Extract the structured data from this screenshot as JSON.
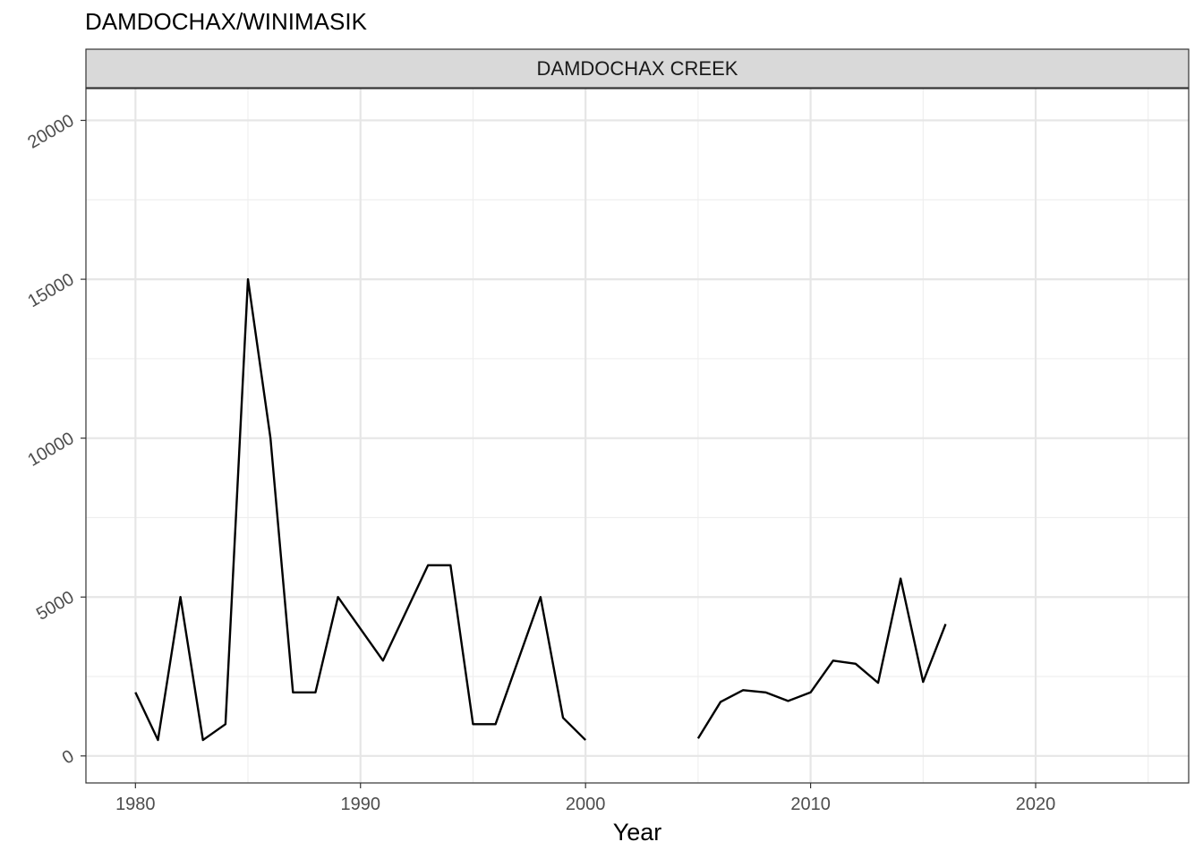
{
  "chart_data": {
    "type": "line",
    "title": "DAMDOCHAX/WINIMASIK",
    "facet_label": "DAMDOCHAX CREEK",
    "xlabel": "Year",
    "ylabel": "",
    "xlim": [
      1977.8,
      2026.8
    ],
    "ylim": [
      -850,
      21000
    ],
    "x_ticks": [
      1980,
      1990,
      2000,
      2010,
      2020
    ],
    "x_minor_ticks": [
      1985,
      1995,
      2005,
      2015,
      2025
    ],
    "y_ticks": [
      0,
      5000,
      10000,
      15000,
      20000
    ],
    "y_minor_ticks": [
      2500,
      7500,
      12500,
      17500
    ],
    "grid": true,
    "line_color": "#000000",
    "series": [
      {
        "x": [
          1980,
          1981,
          1982,
          1983,
          1984,
          1985,
          1986,
          1987,
          1988,
          1989,
          1991,
          1993,
          1994,
          1995,
          1996,
          1998,
          1999,
          2000,
          null,
          2005,
          2006,
          2007,
          2008,
          2009,
          2010,
          2011,
          2012,
          2013,
          2014,
          2015,
          2016
        ],
        "values": [
          2000,
          500,
          5000,
          500,
          1000,
          15000,
          10000,
          2000,
          2000,
          5000,
          3000,
          6000,
          6000,
          1000,
          1000,
          5000,
          1200,
          500,
          null,
          550,
          1700,
          2070,
          2000,
          1730,
          2000,
          3000,
          2900,
          2300,
          5580,
          2330,
          4150
        ]
      }
    ]
  }
}
